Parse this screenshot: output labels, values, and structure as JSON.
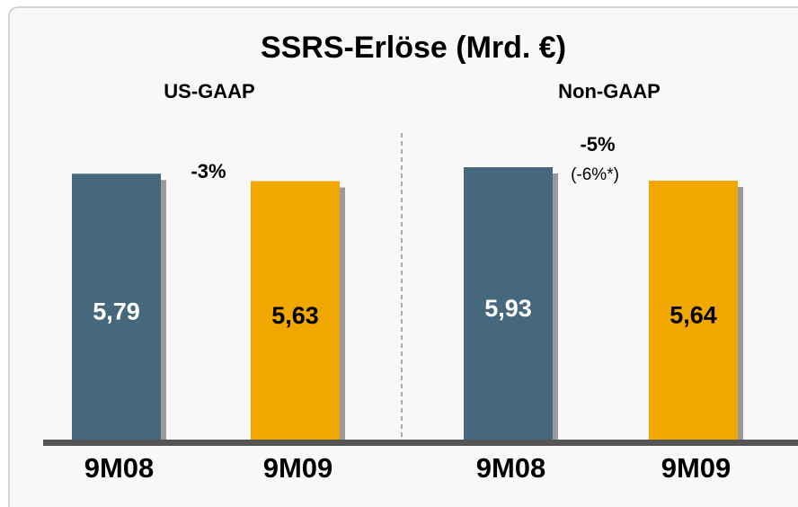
{
  "title": "SSRS-Erlöse (Mrd. €)",
  "chart_data": [
    {
      "type": "bar",
      "subtitle": "US-GAAP",
      "categories": [
        "9M08",
        "9M09"
      ],
      "values": [
        5.79,
        5.63
      ],
      "value_labels": [
        "5,79",
        "5,63"
      ],
      "colors": [
        "#46687d",
        "#f0a800"
      ],
      "annotations": [
        "-3%"
      ]
    },
    {
      "type": "bar",
      "subtitle": "Non-GAAP",
      "categories": [
        "9M08",
        "9M09"
      ],
      "values": [
        5.93,
        5.64
      ],
      "value_labels": [
        "5,93",
        "5,64"
      ],
      "colors": [
        "#46687d",
        "#f0a800"
      ],
      "annotations": [
        "-5%",
        "(-6%*)"
      ]
    }
  ]
}
